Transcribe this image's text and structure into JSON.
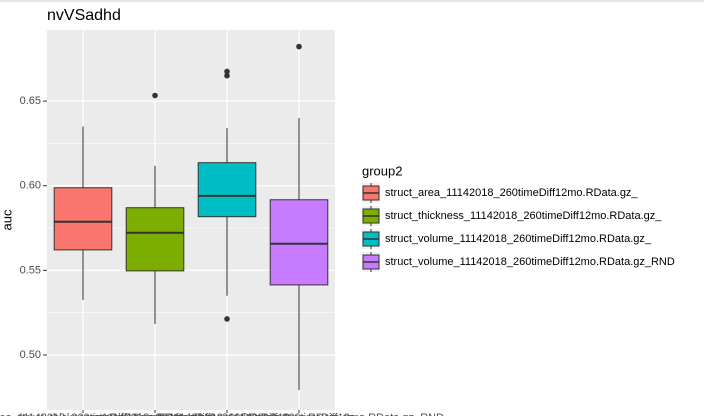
{
  "chart_data": {
    "type": "box",
    "title": "nvVSadhd",
    "y_label": "auc",
    "legend_title": "group2",
    "categories": [
      "struct_area_11142018_260timeDiff12mo.RData.gz_",
      "struct_thickness_11142018_260timeDiff12mo.RData.gz_",
      "struct_volume_11142018_260timeDiff12mo.RData.gz_",
      "struct_volume_11142018_260timeDiff12mo.RData.gz_RND"
    ],
    "colors": [
      "#F8766D",
      "#7CAE00",
      "#00BFC4",
      "#C77CFF"
    ],
    "boxes": [
      {
        "low": 0.5325,
        "q1": 0.5621,
        "median": 0.5787,
        "q3": 0.5988,
        "high": 0.635,
        "outliers": []
      },
      {
        "low": 0.5183,
        "q1": 0.5497,
        "median": 0.5722,
        "q3": 0.587,
        "high": 0.6118,
        "outliers": [
          0.6533
        ]
      },
      {
        "low": 0.535,
        "q1": 0.5817,
        "median": 0.594,
        "q3": 0.6136,
        "high": 0.634,
        "outliers": [
          0.6675,
          0.665,
          0.5213
        ]
      },
      {
        "low": 0.4793,
        "q1": 0.5414,
        "median": 0.5657,
        "q3": 0.5917,
        "high": 0.64,
        "outliers": [
          0.6822
        ]
      }
    ],
    "ylim": [
      0.4675,
      0.692
    ],
    "yticks": [
      {
        "value": 0.5,
        "label": "0.50"
      },
      0.55,
      {
        "value": 0.6,
        "label": "0.60"
      },
      0.65
    ],
    "grid": true,
    "legend": "right"
  }
}
